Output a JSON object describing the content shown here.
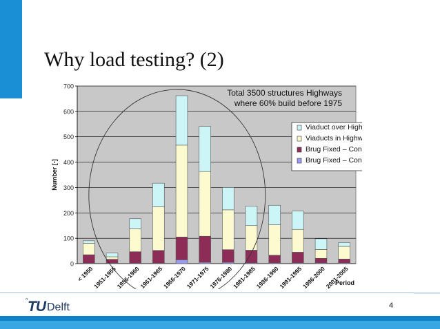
{
  "slide": {
    "title": "Why load testing? (2)",
    "page_number": "4",
    "logo_tu": "TU",
    "logo_delft": "Delft"
  },
  "colors": {
    "accent_blue": "#1b8fd6",
    "plot_bg": "#c8c8c8",
    "viaduct_over": "#ccf5f8",
    "viaducts_in": "#fcfbd0",
    "concrete_small": "#8c2c57",
    "concrete_large": "#9a9af0"
  },
  "chart_data": {
    "type": "bar",
    "stacked": true,
    "annotation_lines": [
      "Total 3500 structures Highways",
      "where 60% build before 1975"
    ],
    "ylabel": "Number [-]",
    "xlabel": "Period",
    "ylim": [
      0,
      700
    ],
    "yticks": [
      0,
      100,
      200,
      300,
      400,
      500,
      600,
      700
    ],
    "grid": true,
    "legend_position": "right",
    "categories": [
      "< 1950",
      "1951-1955",
      "1956-1960",
      "1961-1965",
      "1966-1970",
      "1971-1975",
      "1976-1980",
      "1981-1985",
      "1986-1990",
      "1991-1995",
      "1996-2000",
      "2001-2005"
    ],
    "series": [
      {
        "name": "Brug Fixed – Concrete large",
        "color": "#9a9af0",
        "values": [
          2,
          2,
          2,
          2,
          15,
          5,
          5,
          3,
          3,
          3,
          3,
          3
        ]
      },
      {
        "name": "Brug Fixed – Concrete small",
        "color": "#8c2c57",
        "values": [
          33,
          15,
          45,
          50,
          90,
          103,
          50,
          50,
          30,
          42,
          18,
          15
        ]
      },
      {
        "name": "Viaducts in Highway",
        "color": "#fcfbd0",
        "values": [
          45,
          10,
          90,
          172,
          362,
          255,
          157,
          97,
          120,
          90,
          35,
          50
        ]
      },
      {
        "name": "Viaduct over Highway",
        "color": "#ccf5f8",
        "values": [
          10,
          15,
          40,
          93,
          195,
          178,
          88,
          77,
          77,
          72,
          42,
          15
        ]
      }
    ],
    "legend_order": [
      "Viaduct over Highway",
      "Viaducts in Highway",
      "Brug Fixed – Concrete small",
      "Brug Fixed – Concrete large"
    ]
  }
}
